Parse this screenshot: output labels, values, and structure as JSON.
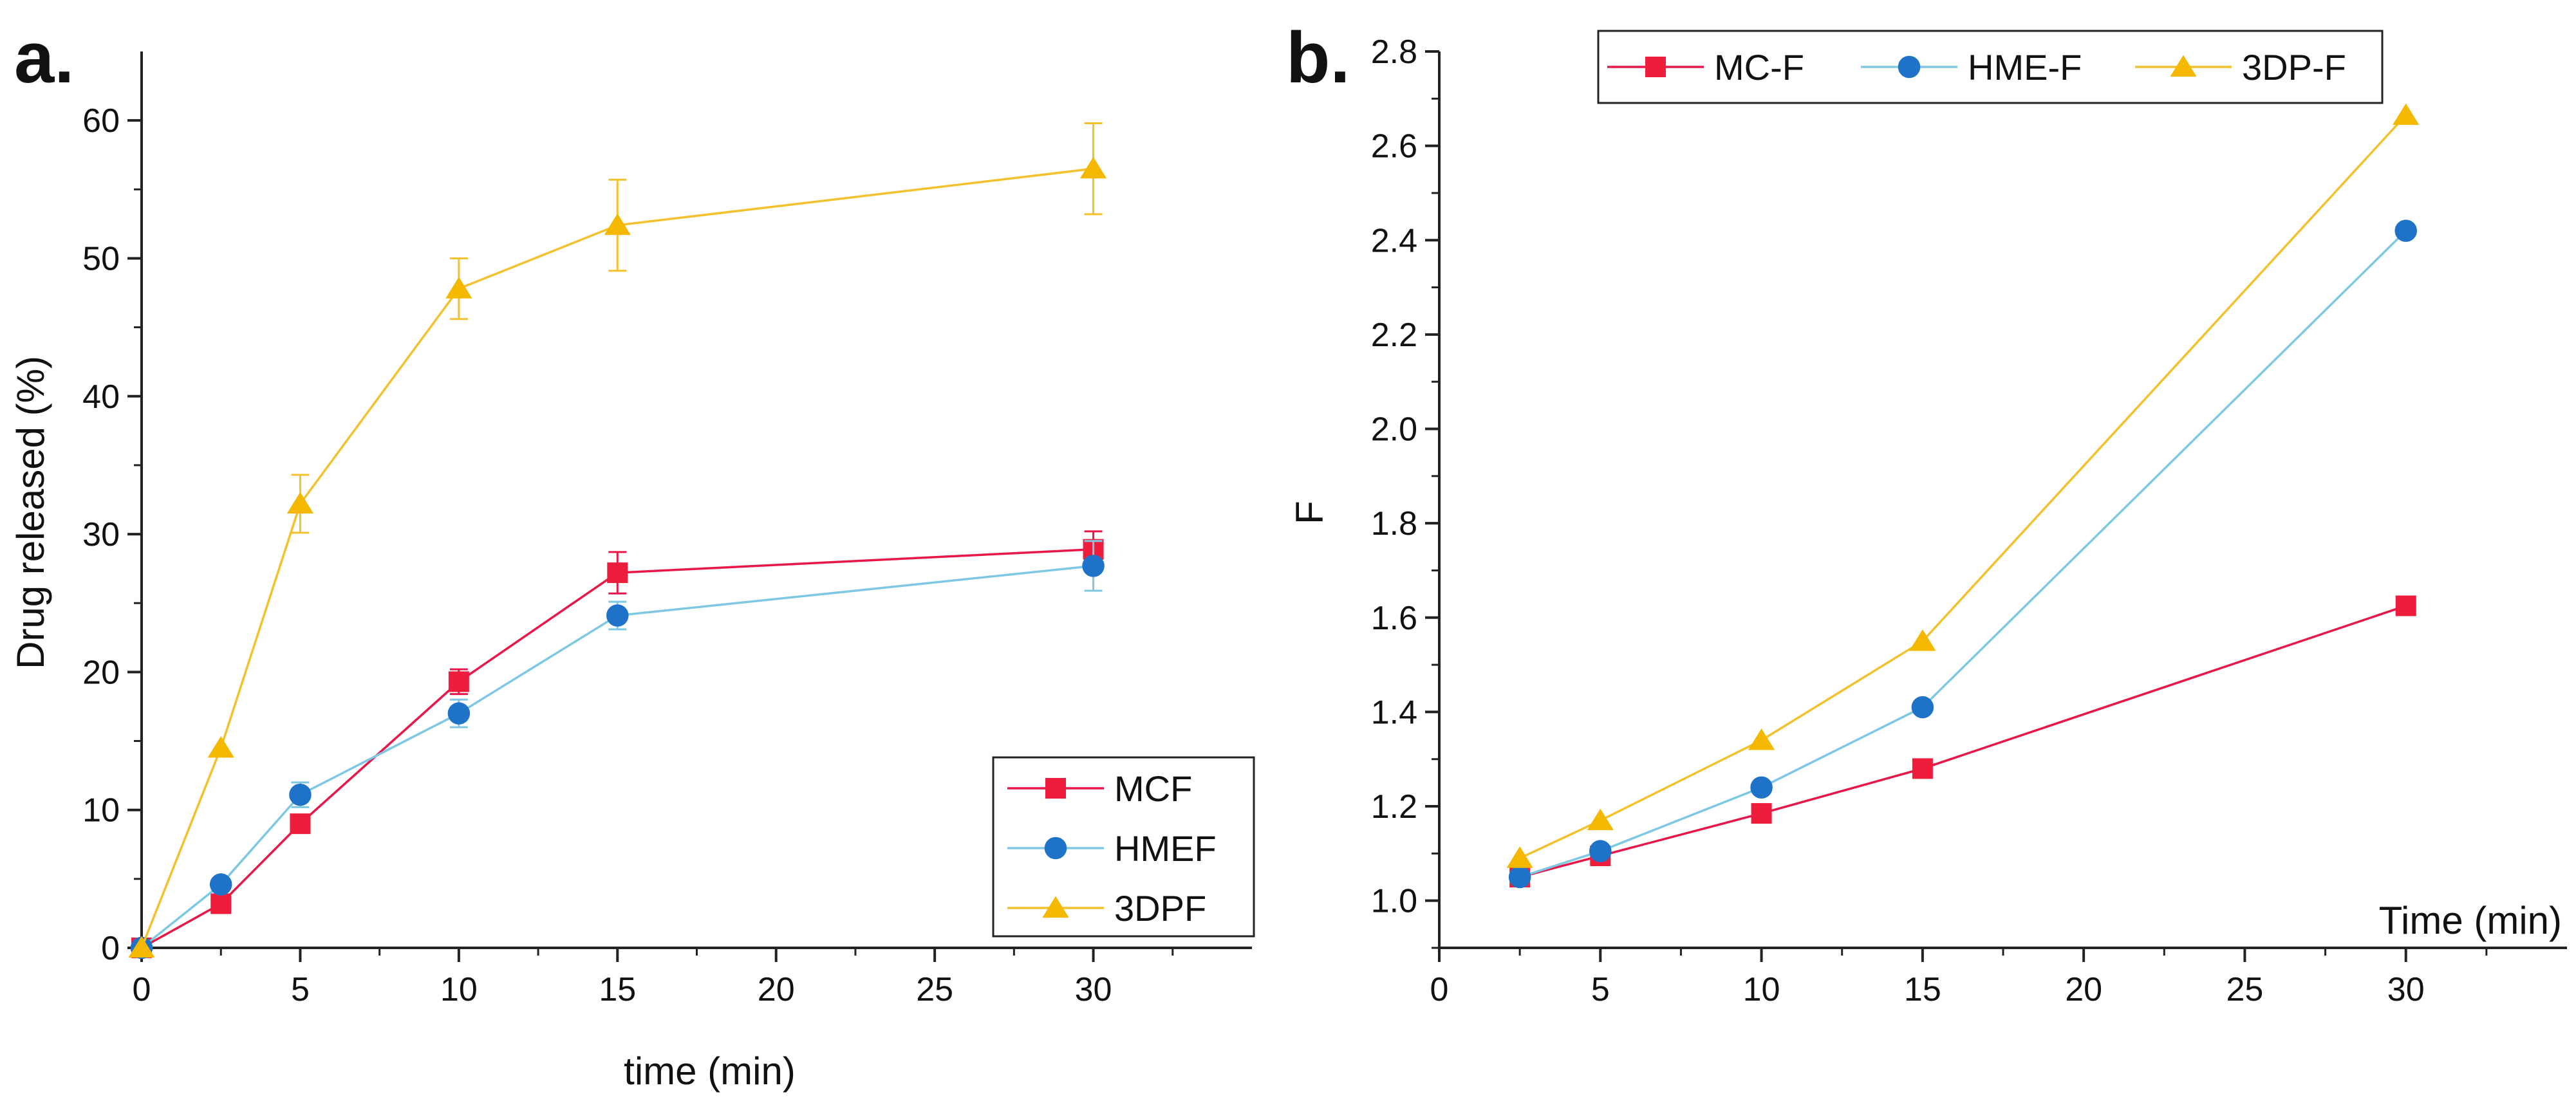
{
  "colors": {
    "MCF": "#e8174a",
    "HMEF": "#7ec8e3",
    "3DPF": "#f2c12e",
    "MCF_marker": "#ee1d3c",
    "HMEF_marker": "#1e73c9",
    "3DPF_marker": "#f5b800",
    "axis": "#222222"
  },
  "chart_data": [
    {
      "panel": "a.",
      "type": "line",
      "xlabel": "time (min)",
      "ylabel": "Drug released (%)",
      "xlim": [
        0,
        35
      ],
      "ylim": [
        0,
        65
      ],
      "xticks": [
        0,
        5,
        10,
        15,
        20,
        25,
        30
      ],
      "yticks": [
        0,
        10,
        20,
        30,
        40,
        50,
        60
      ],
      "legend_position": "bottom-right",
      "series": [
        {
          "name": "MCF",
          "color_key": "MCF",
          "marker": "square",
          "x": [
            0,
            2.5,
            5,
            10,
            15,
            30
          ],
          "y": [
            0,
            3.2,
            9.0,
            19.3,
            27.2,
            28.9
          ],
          "err": [
            0,
            0,
            0,
            0.9,
            1.5,
            1.3
          ]
        },
        {
          "name": "HMEF",
          "color_key": "HMEF",
          "marker": "circle",
          "x": [
            0,
            2.5,
            5,
            10,
            15,
            30
          ],
          "y": [
            0,
            4.6,
            11.1,
            17.0,
            24.1,
            27.7
          ],
          "err": [
            0,
            0,
            0.9,
            1.0,
            1.0,
            1.8
          ]
        },
        {
          "name": "3DPF",
          "color_key": "3DPF",
          "marker": "triangle",
          "x": [
            0,
            2.5,
            5,
            10,
            15,
            30
          ],
          "y": [
            0,
            14.5,
            32.2,
            47.8,
            52.4,
            56.5
          ],
          "err": [
            0,
            0,
            2.1,
            2.2,
            3.3,
            3.3
          ]
        }
      ]
    },
    {
      "panel": "b.",
      "type": "line",
      "xlabel": "Time (min)",
      "ylabel": "F",
      "xlim": [
        0,
        35
      ],
      "ylim": [
        0.9,
        2.8
      ],
      "xticks": [
        0,
        5,
        10,
        15,
        20,
        25,
        30
      ],
      "yticks": [
        "1.0",
        "1.2",
        "1.4",
        "1.6",
        "1.8",
        "2.0",
        "2.2",
        "2.4",
        "2.6",
        "2.8"
      ],
      "legend_position": "top-left",
      "series": [
        {
          "name": "MC-F",
          "color_key": "MCF",
          "marker": "square",
          "x": [
            2.5,
            5,
            10,
            15,
            30
          ],
          "y": [
            1.05,
            1.095,
            1.185,
            1.28,
            1.625
          ]
        },
        {
          "name": "HME-F",
          "color_key": "HMEF",
          "marker": "circle",
          "x": [
            2.5,
            5,
            10,
            15,
            30
          ],
          "y": [
            1.05,
            1.105,
            1.24,
            1.41,
            2.42
          ]
        },
        {
          "name": "3DP-F",
          "color_key": "3DPF",
          "marker": "triangle",
          "x": [
            2.5,
            5,
            10,
            15,
            30
          ],
          "y": [
            1.09,
            1.17,
            1.34,
            1.55,
            2.665
          ]
        }
      ]
    }
  ]
}
